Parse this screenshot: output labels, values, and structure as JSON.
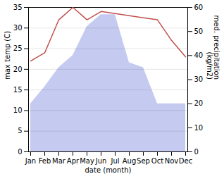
{
  "chart_data": {
    "type": "line",
    "categories": [
      "Jan",
      "Feb",
      "Mar",
      "Apr",
      "May",
      "Jun",
      "Jul",
      "Aug",
      "Sep",
      "Oct",
      "Nov",
      "Dec"
    ],
    "xlabel": "date (month)",
    "ylabel": "max temp (C)",
    "y2label": "med. precipitation\n(kg/m2)",
    "series": [
      {
        "type": "area",
        "axis": "y2",
        "color": "#c5caf0",
        "values": [
          20,
          27,
          35,
          40,
          52,
          57,
          57,
          37,
          35,
          20,
          20,
          20
        ]
      },
      {
        "type": "line",
        "color": "#c0504d",
        "values": [
          22,
          24,
          32,
          35,
          32,
          34,
          33.5,
          33,
          32.5,
          32,
          27,
          23
        ]
      }
    ],
    "ylim": [
      0,
      35
    ],
    "yticks": [
      0,
      5,
      10,
      15,
      20,
      25,
      30,
      35
    ],
    "y2lim": [
      0,
      60
    ],
    "y2ticks": [
      0,
      10,
      20,
      30,
      40,
      50,
      60
    ],
    "grid": true
  }
}
